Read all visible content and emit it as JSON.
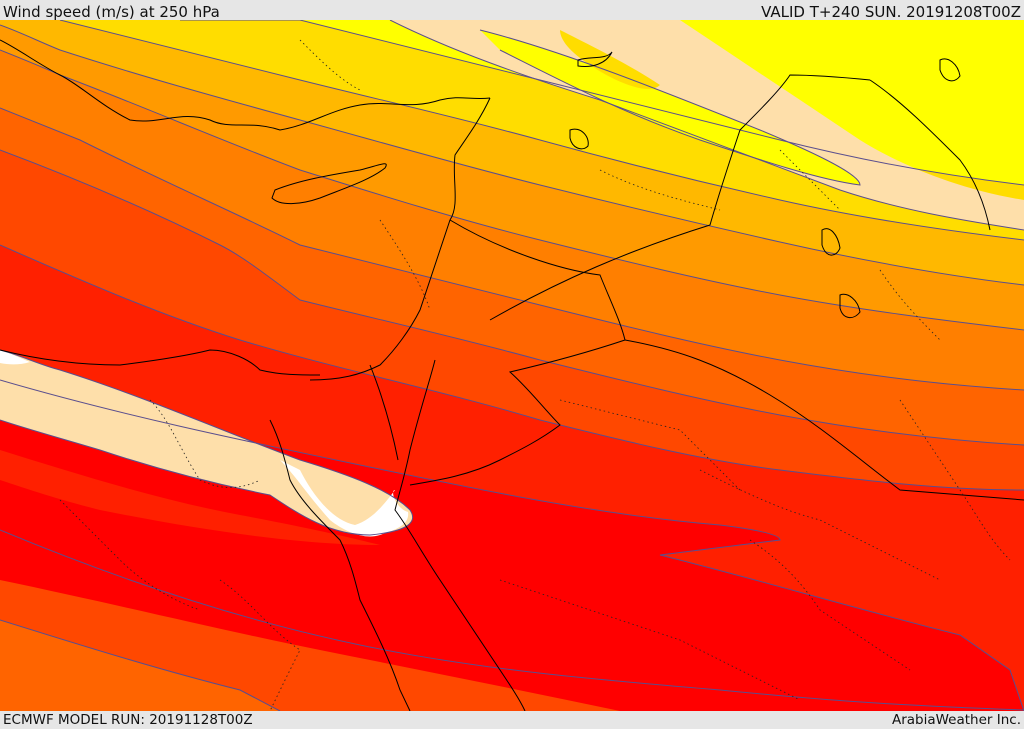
{
  "header": {
    "title": "Wind speed (m/s) at 250 hPa",
    "valid": "VALID T+240 SUN. 20191208T00Z"
  },
  "footer": {
    "model_run": "ECMWF MODEL RUN: 20191128T00Z",
    "credit": "ArabiaWeather Inc."
  },
  "map": {
    "region": "Eastern Mediterranean, Egypt, Levant, Arabian Peninsula",
    "variable": "wind speed",
    "level": "250 hPa",
    "palette": {
      "band_white": "#ffffff",
      "band_cream": "#fedfaa",
      "band_yellow": "#ffff00",
      "band_lightgold": "#ffee00",
      "band_gold": "#ffdd00",
      "band_lightorange": "#ffb800",
      "band_orange": "#ff9a00",
      "band_darkorange": "#ff7f00",
      "band_redorange": "#ff6400",
      "band_orangered": "#ff4800",
      "band_red": "#ff2000",
      "band_pure_red": "#ff0000"
    },
    "contour_color": "#5a4e8e",
    "coast_color": "#000000"
  }
}
